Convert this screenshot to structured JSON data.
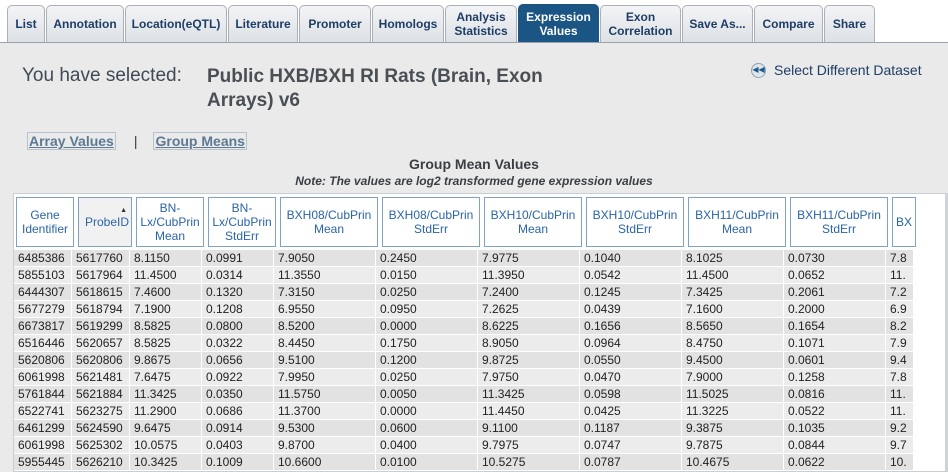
{
  "tabs": [
    {
      "label": "List",
      "active": false
    },
    {
      "label": "Annotation",
      "active": false
    },
    {
      "label": "Location(eQTL)",
      "active": false
    },
    {
      "label": "Literature",
      "active": false
    },
    {
      "label": "Promoter",
      "active": false
    },
    {
      "label": "Homologs",
      "active": false
    },
    {
      "label": "Analysis\nStatistics",
      "active": false
    },
    {
      "label": "Expression\nValues",
      "active": true
    },
    {
      "label": "Exon\nCorrelation",
      "active": false
    },
    {
      "label": "Save As...",
      "active": false
    },
    {
      "label": "Compare",
      "active": false
    },
    {
      "label": "Share",
      "active": false
    }
  ],
  "selection": {
    "label": "You have selected:",
    "value": "Public HXB/BXH RI Rats (Brain, Exon Arrays) v6",
    "select_different": "Select Different Dataset"
  },
  "view_links": {
    "array_values": "Array Values",
    "separator": "|",
    "group_means": "Group Means"
  },
  "table": {
    "title": "Group Mean Values",
    "note": "Note: The values are log2 transformed gene expression values",
    "columns": [
      "Gene\nIdentifier",
      "ProbeID",
      "BN-\nLx/CubPrin\nMean",
      "BN-\nLx/CubPrin\nStdErr",
      "BXH08/CubPrin\nMean",
      "BXH08/CubPrin\nStdErr",
      "BXH10/CubPrin\nMean",
      "BXH10/CubPrin\nStdErr",
      "BXH11/CubPrin\nMean",
      "BXH11/CubPrin\nStdErr",
      "BX"
    ],
    "rows": [
      [
        "6485386",
        "5617760",
        "8.1150",
        "0.0991",
        "7.9050",
        "0.2450",
        "7.9775",
        "0.1040",
        "8.1025",
        "0.0730",
        "7.8"
      ],
      [
        "5855103",
        "5617964",
        "11.4500",
        "0.0314",
        "11.3550",
        "0.0150",
        "11.3950",
        "0.0542",
        "11.4500",
        "0.0652",
        "11."
      ],
      [
        "6444307",
        "5618615",
        "7.4600",
        "0.1320",
        "7.3150",
        "0.0250",
        "7.2400",
        "0.1245",
        "7.3425",
        "0.2061",
        "7.2"
      ],
      [
        "5677279",
        "5618794",
        "7.1900",
        "0.1208",
        "6.9550",
        "0.0950",
        "7.2625",
        "0.0439",
        "7.1600",
        "0.2000",
        "6.9"
      ],
      [
        "6673817",
        "5619299",
        "8.5825",
        "0.0800",
        "8.5200",
        "0.0000",
        "8.6225",
        "0.1656",
        "8.5650",
        "0.1654",
        "8.2"
      ],
      [
        "6516446",
        "5620657",
        "8.5825",
        "0.0322",
        "8.4450",
        "0.1750",
        "8.9050",
        "0.0964",
        "8.4750",
        "0.1071",
        "7.9"
      ],
      [
        "5620806",
        "5620806",
        "9.8675",
        "0.0656",
        "9.5100",
        "0.1200",
        "9.8725",
        "0.0550",
        "9.4500",
        "0.0601",
        "9.4"
      ],
      [
        "6061998",
        "5621481",
        "7.6475",
        "0.0922",
        "7.9950",
        "0.0250",
        "7.9750",
        "0.0470",
        "7.9000",
        "0.1258",
        "7.8"
      ],
      [
        "5761844",
        "5621884",
        "11.3425",
        "0.0350",
        "11.5750",
        "0.0050",
        "11.3425",
        "0.0598",
        "11.5025",
        "0.0816",
        "11."
      ],
      [
        "6522741",
        "5623275",
        "11.2900",
        "0.0686",
        "11.3700",
        "0.0000",
        "11.4450",
        "0.0425",
        "11.3225",
        "0.0522",
        "11."
      ],
      [
        "6461299",
        "5624590",
        "9.6475",
        "0.0914",
        "9.5300",
        "0.0600",
        "9.1100",
        "0.1187",
        "9.3875",
        "0.1035",
        "9.2"
      ],
      [
        "6061998",
        "5625302",
        "10.0575",
        "0.0403",
        "9.8700",
        "0.0400",
        "9.7975",
        "0.0747",
        "9.7875",
        "0.0844",
        "9.7"
      ],
      [
        "5955445",
        "5626210",
        "10.3425",
        "0.1009",
        "10.6600",
        "0.0100",
        "10.5275",
        "0.0787",
        "10.4675",
        "0.0622",
        "10."
      ]
    ]
  }
}
